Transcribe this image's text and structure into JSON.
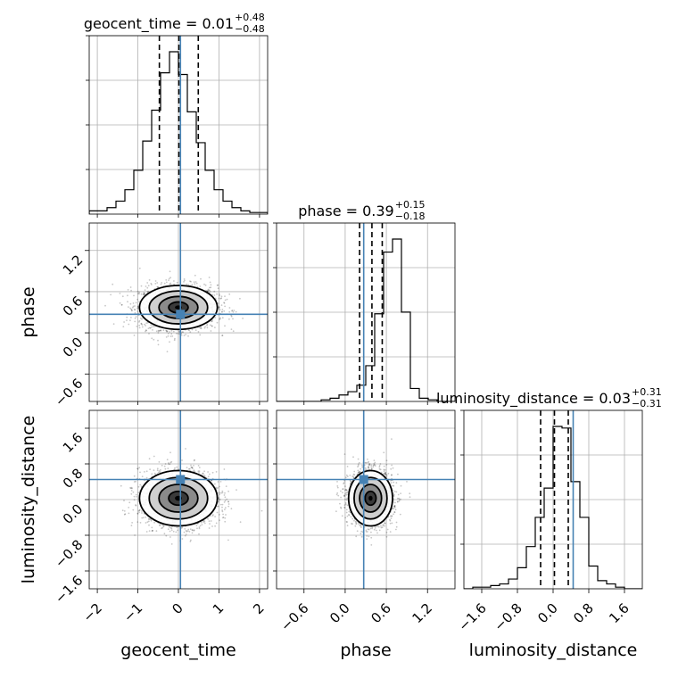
{
  "chart_data": {
    "type": "corner",
    "parameters": [
      "geocent_time",
      "phase",
      "luminosity_distance"
    ],
    "axis_labels": [
      "geocent_time",
      "phase",
      "luminosity_distance"
    ],
    "titles": [
      {
        "name": "geocent_time",
        "median": "0.01",
        "plus": "+0.48",
        "minus": "−0.48"
      },
      {
        "name": "phase",
        "median": "0.39",
        "plus": "+0.15",
        "minus": "−0.18"
      },
      {
        "name": "luminosity_distance",
        "median": "0.03",
        "plus": "+0.31",
        "minus": "−0.31"
      }
    ],
    "ranges": [
      [
        -2.2,
        2.2
      ],
      [
        -1.0,
        1.6
      ],
      [
        -2.0,
        2.0
      ]
    ],
    "ticks": [
      {
        "values": [
          -2,
          -1,
          0,
          1,
          2
        ],
        "labels": [
          "−2",
          "−1",
          "0",
          "1",
          "2"
        ]
      },
      {
        "values": [
          -0.6,
          0.0,
          0.6,
          1.2
        ],
        "labels": [
          "−0.6",
          "0.0",
          "0.6",
          "1.2"
        ]
      },
      {
        "values": [
          -1.6,
          -0.8,
          0.0,
          0.8,
          1.6
        ],
        "labels": [
          "−1.6",
          "−0.8",
          "0.0",
          "0.8",
          "1.6"
        ]
      }
    ],
    "truths": [
      0.05,
      0.27,
      0.45
    ],
    "quantiles": [
      [
        -0.47,
        0.01,
        0.49
      ],
      [
        0.21,
        0.39,
        0.54
      ],
      [
        -0.28,
        0.03,
        0.34
      ]
    ],
    "histograms": [
      {
        "edges_from": -2.2,
        "bin_width": 0.22,
        "counts": [
          2,
          2,
          4,
          8,
          15,
          27,
          45,
          64,
          87,
          100,
          86,
          63,
          44,
          27,
          15,
          8,
          4,
          2,
          1,
          1
        ]
      },
      {
        "edges_from": -1.0,
        "bin_width": 0.13,
        "counts": [
          0,
          0,
          0,
          0,
          0,
          1,
          2,
          4,
          6,
          10,
          22,
          54,
          92,
          100,
          55,
          8,
          2,
          1,
          0,
          0
        ]
      },
      {
        "edges_from": -2.0,
        "bin_width": 0.2,
        "counts": [
          0,
          1,
          1,
          2,
          3,
          6,
          13,
          26,
          44,
          62,
          100,
          99,
          66,
          44,
          14,
          5,
          3,
          1,
          0,
          0
        ]
      }
    ],
    "contours_2d": [
      {
        "x": 0,
        "y": 1,
        "center": [
          0.0,
          0.37
        ],
        "sigma": [
          0.48,
          0.16
        ]
      },
      {
        "x": 0,
        "y": 2,
        "center": [
          0.0,
          0.03
        ],
        "sigma": [
          0.48,
          0.31
        ]
      },
      {
        "x": 1,
        "y": 2,
        "center": [
          0.37,
          0.03
        ],
        "sigma": [
          0.16,
          0.31
        ]
      }
    ],
    "truth_color": "#4682b4",
    "grid": true
  }
}
